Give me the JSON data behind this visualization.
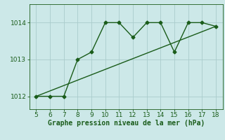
{
  "x": [
    5,
    6,
    7,
    8,
    9,
    10,
    11,
    12,
    13,
    14,
    15,
    16,
    17,
    18
  ],
  "y": [
    1012.0,
    1012.0,
    1012.0,
    1013.0,
    1013.2,
    1014.0,
    1014.0,
    1013.6,
    1014.0,
    1014.0,
    1013.2,
    1014.0,
    1014.0,
    1013.9
  ],
  "trend_x": [
    5,
    18
  ],
  "trend_y": [
    1012.0,
    1013.9
  ],
  "line_color": "#1a5c1a",
  "bg_color": "#cce8e8",
  "grid_color": "#aacccc",
  "xlabel": "Graphe pression niveau de la mer (hPa)",
  "xlim": [
    4.5,
    18.5
  ],
  "ylim": [
    1011.65,
    1014.5
  ],
  "yticks": [
    1012,
    1013,
    1014
  ],
  "xticks": [
    5,
    6,
    7,
    8,
    9,
    10,
    11,
    12,
    13,
    14,
    15,
    16,
    17,
    18
  ],
  "xlabel_color": "#1a5c1a",
  "xlabel_fontsize": 7.0,
  "tick_fontsize": 6.5,
  "line_width": 1.0,
  "marker": "D",
  "marker_size": 2.5
}
